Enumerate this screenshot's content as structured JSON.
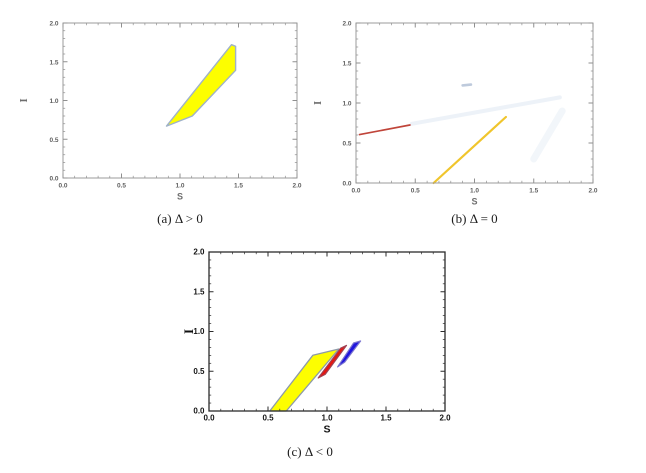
{
  "page": {
    "background": "#ffffff"
  },
  "chart_data": [
    {
      "panel": "a",
      "type": "area",
      "caption": "(a) Δ > 0",
      "xlabel": "S",
      "ylabel": "I",
      "xlim": [
        0,
        2
      ],
      "ylim": [
        0,
        2
      ],
      "xticks": [
        0,
        0.5,
        1,
        1.5,
        2
      ],
      "yticks": [
        0,
        0.5,
        1,
        1.5,
        2
      ],
      "minor_step": 0.1,
      "regions": [
        {
          "name": "delta-positive-yellow-region",
          "fill": "#fdfe00",
          "stroke": "#9fb2c8",
          "stroke_width": 1.4,
          "points": [
            [
              0.885,
              0.67
            ],
            [
              1.105,
              0.8
            ],
            [
              1.475,
              1.39
            ],
            [
              1.475,
              1.7
            ],
            [
              1.44,
              1.72
            ]
          ]
        }
      ],
      "segments": [],
      "ghost_marks": [],
      "style": {
        "frame_color": "#9b9b9b",
        "frame_width": 1,
        "tick_color": "#8f8f8f",
        "tick_label_color": "#5f5f5f",
        "axis_label_color": "#6e6e6e"
      }
    },
    {
      "panel": "b",
      "type": "line",
      "caption": "(b) Δ = 0",
      "xlabel": "S",
      "ylabel": "I",
      "xlim": [
        0,
        2
      ],
      "ylim": [
        0,
        2
      ],
      "xticks": [
        0,
        0.5,
        1,
        1.5,
        2
      ],
      "yticks": [
        0,
        0.5,
        1,
        1.5,
        2
      ],
      "minor_step": 0.1,
      "regions": [],
      "segments": [
        {
          "name": "red-boundary-line",
          "from": [
            0.03,
            0.605
          ],
          "to": [
            0.455,
            0.725
          ],
          "color": "#c0453a",
          "width": 1.7
        },
        {
          "name": "yellow-boundary-line",
          "from": [
            0.655,
            0.0
          ],
          "to": [
            1.265,
            0.825
          ],
          "color": "#f0c52c",
          "width": 2.2
        }
      ],
      "ghost_marks": [
        {
          "name": "faint-streak-upper",
          "from": [
            0.47,
            0.74
          ],
          "to": [
            1.72,
            1.07
          ],
          "color": "#dfe8f2",
          "width": 4,
          "opacity": 0.55
        },
        {
          "name": "faint-streak-right",
          "from": [
            1.5,
            0.3
          ],
          "to": [
            1.74,
            0.9
          ],
          "color": "#e3ebf4",
          "width": 7,
          "opacity": 0.45
        },
        {
          "name": "faint-dash",
          "from": [
            0.9,
            1.22
          ],
          "to": [
            0.97,
            1.23
          ],
          "color": "#aebdd3",
          "width": 2.6,
          "opacity": 0.8
        }
      ],
      "style": {
        "frame_color": "#9b9b9b",
        "frame_width": 1,
        "tick_color": "#8f8f8f",
        "tick_label_color": "#5f5f5f",
        "axis_label_color": "#6e6e6e"
      }
    },
    {
      "panel": "c",
      "type": "area",
      "caption": "(c) Δ < 0",
      "xlabel": "S",
      "ylabel": "I",
      "xlim": [
        0,
        2
      ],
      "ylim": [
        0,
        2
      ],
      "xticks": [
        0,
        0.5,
        1,
        1.5,
        2
      ],
      "yticks": [
        0,
        0.5,
        1,
        1.5,
        2
      ],
      "minor_step": 0.1,
      "regions": [
        {
          "name": "delta-negative-yellow-region",
          "fill": "#fdfe00",
          "stroke": "#8d9aa8",
          "stroke_width": 1.3,
          "points": [
            [
              0.515,
              0.0
            ],
            [
              0.88,
              0.7
            ],
            [
              1.1,
              0.78
            ],
            [
              0.655,
              0.0
            ]
          ]
        },
        {
          "name": "delta-negative-red-region",
          "fill": "#e8150f",
          "stroke": "#a04253",
          "stroke_width": 1.2,
          "points": [
            [
              0.925,
              0.415
            ],
            [
              1.115,
              0.79
            ],
            [
              1.165,
              0.825
            ],
            [
              0.985,
              0.46
            ]
          ]
        },
        {
          "name": "delta-negative-blue-region",
          "fill": "#2015dd",
          "stroke": "#7a74cf",
          "stroke_width": 1.2,
          "points": [
            [
              1.09,
              0.555
            ],
            [
              1.225,
              0.855
            ],
            [
              1.285,
              0.88
            ],
            [
              1.15,
              0.615
            ]
          ]
        }
      ],
      "segments": [],
      "ghost_marks": [],
      "style": {
        "frame_color": "#2b2b2b",
        "frame_width": 1.3,
        "tick_color": "#2b2b2b",
        "tick_label_color": "#141414",
        "axis_label_color": "#101010"
      }
    }
  ]
}
